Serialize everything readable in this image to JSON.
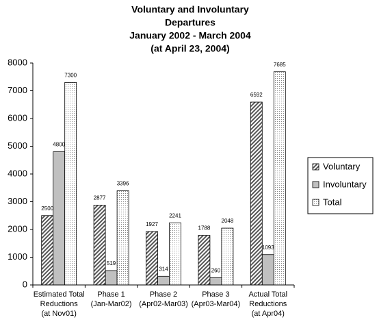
{
  "chart_data": {
    "type": "bar",
    "title": [
      "Voluntary and Involuntary",
      "Departures",
      "January 2002 - March 2004",
      "(at April 23, 2004)"
    ],
    "categories": [
      [
        "Estimated Total",
        "Reductions",
        "(at Nov01)"
      ],
      [
        "Phase 1",
        "(Jan-Mar02)"
      ],
      [
        "Phase 2",
        "(Apr02-Mar03)"
      ],
      [
        "Phase 3",
        "(Apr03-Mar04)"
      ],
      [
        "Actual Total",
        "Reductions",
        "(at Apr04)"
      ]
    ],
    "series": [
      {
        "name": "Voluntary",
        "color": "#555555",
        "pattern": "hatch",
        "values": [
          2500,
          2877,
          1927,
          1788,
          6592
        ]
      },
      {
        "name": "Involuntary",
        "color": "#c0c0c0",
        "pattern": "solid",
        "values": [
          4800,
          519,
          314,
          260,
          1093
        ]
      },
      {
        "name": "Total",
        "color": "#888888",
        "pattern": "dots",
        "values": [
          7300,
          3396,
          2241,
          2048,
          7685
        ]
      }
    ],
    "ylim": [
      0,
      8000
    ],
    "yticks": [
      0,
      1000,
      2000,
      3000,
      4000,
      5000,
      6000,
      7000,
      8000
    ],
    "grid": false,
    "data_labels": true,
    "legend": "right"
  }
}
